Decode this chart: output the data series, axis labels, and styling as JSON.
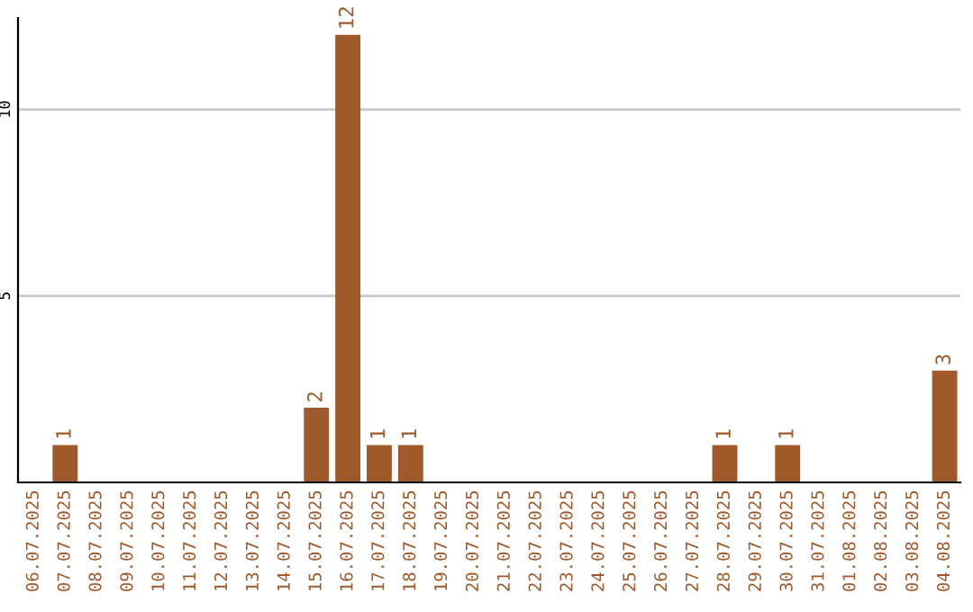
{
  "chart_data": {
    "type": "bar",
    "categories": [
      "06.07.2025",
      "07.07.2025",
      "08.07.2025",
      "09.07.2025",
      "10.07.2025",
      "11.07.2025",
      "12.07.2025",
      "13.07.2025",
      "14.07.2025",
      "15.07.2025",
      "16.07.2025",
      "17.07.2025",
      "18.07.2025",
      "19.07.2025",
      "20.07.2025",
      "21.07.2025",
      "22.07.2025",
      "23.07.2025",
      "24.07.2025",
      "25.07.2025",
      "26.07.2025",
      "27.07.2025",
      "28.07.2025",
      "29.07.2025",
      "30.07.2025",
      "31.07.2025",
      "01.08.2025",
      "02.08.2025",
      "03.08.2025",
      "04.08.2025"
    ],
    "values": [
      0,
      1,
      0,
      0,
      0,
      0,
      0,
      0,
      0,
      2,
      12,
      1,
      1,
      0,
      0,
      0,
      0,
      0,
      0,
      0,
      0,
      0,
      1,
      0,
      1,
      0,
      0,
      0,
      0,
      3
    ],
    "value_labels": [
      null,
      "1",
      null,
      null,
      null,
      null,
      null,
      null,
      null,
      "2",
      "12",
      "1",
      "1",
      null,
      null,
      null,
      null,
      null,
      null,
      null,
      null,
      null,
      "1",
      null,
      "1",
      null,
      null,
      null,
      null,
      "3"
    ],
    "color": "#a0592a",
    "ylim": [
      0,
      12.45
    ],
    "yticks": [
      5,
      10
    ],
    "grid": "y"
  }
}
